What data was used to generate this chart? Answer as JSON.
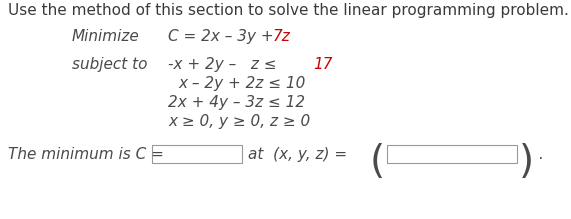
{
  "title_text": "Use the method of this section to solve the linear programming problem.",
  "minimize_label": "Minimize",
  "objective_black": "C = 2x – 3y + ",
  "objective_red": "7z",
  "subject_to_label": "subject to",
  "c1_black": "-x + 2y –   z ≤ ",
  "c1_red": "17",
  "c2": "x – 2y + 2z ≤ 10",
  "c3": "2x + 4y – 3z ≤ 12",
  "c4": "x ≥ 0, y ≥ 0, z ≥ 0",
  "bottom1": "The minimum is C =",
  "bottom2": "at  (x, y, z) =",
  "bottom_dot": ".",
  "bg_color": "#ffffff",
  "text_color": "#4a4a4a",
  "red_color": "#cc0000",
  "title_fontsize": 11.0,
  "body_fontsize": 11.0
}
